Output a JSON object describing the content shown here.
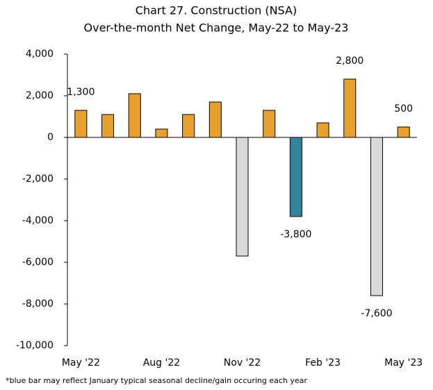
{
  "chart_data": {
    "type": "bar",
    "title": "Chart 27. Construction (NSA)",
    "subtitle": "Over-the-month Net Change, May-22 to May-23",
    "categories": [
      "May '22",
      null,
      null,
      "Aug '22",
      null,
      null,
      "Nov '22",
      null,
      null,
      "Feb '23",
      null,
      null,
      "May '23"
    ],
    "values": [
      1300,
      1100,
      2100,
      400,
      1100,
      1700,
      -5700,
      1300,
      -3800,
      700,
      2800,
      -7600,
      500
    ],
    "value_labels": [
      "1,300",
      null,
      null,
      null,
      null,
      null,
      null,
      null,
      "-3,800",
      null,
      "2,800",
      "-7,600",
      "500"
    ],
    "colors": [
      "#e8a02f",
      "#e8a02f",
      "#e8a02f",
      "#e8a02f",
      "#e8a02f",
      "#e8a02f",
      "#d9d9d9",
      "#e8a02f",
      "#31849b",
      "#e8a02f",
      "#e8a02f",
      "#d9d9d9",
      "#e8a02f"
    ],
    "ylim": [
      -10000,
      4000
    ],
    "yticks": [
      {
        "value": -10000,
        "label": "-10,000"
      },
      {
        "value": -8000,
        "label": "-8,000"
      },
      {
        "value": -6000,
        "label": "-6,000"
      },
      {
        "value": -4000,
        "label": "-4,000"
      },
      {
        "value": -2000,
        "label": "-2,000"
      },
      0,
      {
        "value": 2000,
        "label": "2,000"
      },
      {
        "value": 4000,
        "label": "4,000"
      }
    ],
    "grid": false,
    "footnote": "*blue bar may reflect January typical seasonal decline/gain occuring each year"
  }
}
